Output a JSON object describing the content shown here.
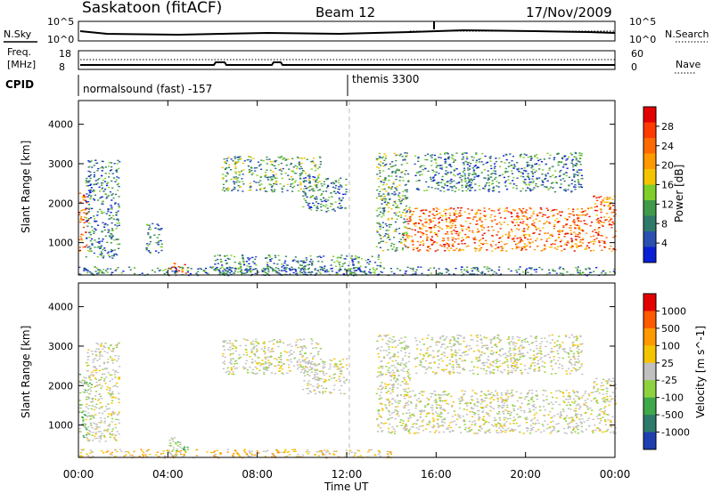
{
  "header": {
    "station": "Saskatoon (fitACF)",
    "beam": "Beam 12",
    "date": "17/Nov/2009"
  },
  "noise_panel": {
    "left_label": "N.Sky",
    "right_label": "N.Search",
    "left_ticks": [
      "10^5",
      "10^0"
    ],
    "right_ticks": [
      "10^5",
      "10^0"
    ]
  },
  "freq_panel": {
    "left_label_line1": "Freq.",
    "left_label_line2": "[MHz]",
    "right_label": "Nave",
    "left_ticks": [
      "18",
      "8"
    ],
    "right_ticks": [
      "60",
      "0"
    ]
  },
  "cpid_panel": {
    "label": "CPID",
    "programs": [
      {
        "name": "normalsound (fast) -157",
        "start_hour": 0
      },
      {
        "name": "themis 3300",
        "start_hour": 12
      }
    ]
  },
  "chart_data": [
    {
      "type": "heatmap",
      "name": "power",
      "xlabel": "Time UT",
      "ylabel": "Slant Range [km]",
      "colorbar_label": "Power [dB]",
      "x_range_hours": [
        0,
        24
      ],
      "ylim": [
        180,
        4600
      ],
      "x_ticks": [
        "00:00",
        "04:00",
        "08:00",
        "12:00",
        "16:00",
        "20:00",
        "00:00"
      ],
      "y_ticks": [
        1000,
        2000,
        3000,
        4000
      ],
      "colorbar_ticks": [
        "28",
        "24",
        "20",
        "16",
        "12",
        "8",
        "4"
      ],
      "colorbar_colors": [
        "#0a1fd6",
        "#2a50b0",
        "#2f7a6a",
        "#3f9b4a",
        "#7fcf2a",
        "#f5c400",
        "#ff9900",
        "#ff6a00",
        "#ff3a00",
        "#e50000"
      ],
      "regions": [
        {
          "t0": 0.0,
          "t1": 0.4,
          "r0": 700,
          "r1": 2300,
          "value": "high"
        },
        {
          "t0": 0.3,
          "t1": 1.8,
          "r0": 600,
          "r1": 3100,
          "value": "low"
        },
        {
          "t0": 3.0,
          "t1": 3.7,
          "r0": 700,
          "r1": 1500,
          "value": "low"
        },
        {
          "t0": 4.0,
          "t1": 4.9,
          "r0": 180,
          "r1": 500,
          "value": "high"
        },
        {
          "t0": 6.4,
          "t1": 10.8,
          "r0": 2300,
          "r1": 3200,
          "value": "mid"
        },
        {
          "t0": 10.0,
          "t1": 12.0,
          "r0": 1800,
          "r1": 2700,
          "value": "low"
        },
        {
          "t0": 6.0,
          "t1": 13.5,
          "r0": 180,
          "r1": 700,
          "value": "low"
        },
        {
          "t0": 13.3,
          "t1": 14.8,
          "r0": 800,
          "r1": 3300,
          "value": "mid"
        },
        {
          "t0": 14.5,
          "t1": 23.0,
          "r0": 800,
          "r1": 1900,
          "value": "high"
        },
        {
          "t0": 15.0,
          "t1": 22.5,
          "r0": 2300,
          "r1": 3300,
          "value": "low"
        },
        {
          "t0": 23.0,
          "t1": 24.0,
          "r0": 800,
          "r1": 2200,
          "value": "high"
        },
        {
          "t0": 0.0,
          "t1": 24.0,
          "r0": 180,
          "r1": 400,
          "value": "low"
        }
      ]
    },
    {
      "type": "heatmap",
      "name": "velocity",
      "xlabel": "Time UT",
      "ylabel": "Slant Range [km]",
      "colorbar_label": "Velocity [m s^-1]",
      "x_range_hours": [
        0,
        24
      ],
      "ylim": [
        180,
        4600
      ],
      "x_ticks": [
        "00:00",
        "04:00",
        "08:00",
        "12:00",
        "16:00",
        "20:00",
        "00:00"
      ],
      "y_ticks": [
        1000,
        2000,
        3000,
        4000
      ],
      "colorbar_ticks": [
        "1000",
        "500",
        "100",
        "25",
        "-25",
        "-100",
        "-500",
        "-1000"
      ],
      "colorbar_colors": [
        "#1f3fb0",
        "#2e7a6a",
        "#3fa84a",
        "#8fd240",
        "#c0c0c0",
        "#f5c400",
        "#ff9900",
        "#ff5a00",
        "#e50000"
      ],
      "regions": [
        {
          "t0": 0.0,
          "t1": 0.6,
          "r0": 700,
          "r1": 2300,
          "value": "green"
        },
        {
          "t0": 0.3,
          "t1": 1.8,
          "r0": 600,
          "r1": 3100,
          "value": "gray"
        },
        {
          "t0": 4.0,
          "t1": 4.9,
          "r0": 180,
          "r1": 700,
          "value": "green"
        },
        {
          "t0": 6.4,
          "t1": 10.8,
          "r0": 2300,
          "r1": 3200,
          "value": "gray"
        },
        {
          "t0": 10.0,
          "t1": 12.0,
          "r0": 1800,
          "r1": 2700,
          "value": "gray"
        },
        {
          "t0": 13.3,
          "t1": 14.8,
          "r0": 800,
          "r1": 3300,
          "value": "gray"
        },
        {
          "t0": 14.5,
          "t1": 23.0,
          "r0": 800,
          "r1": 1900,
          "value": "gray"
        },
        {
          "t0": 15.0,
          "t1": 22.5,
          "r0": 2300,
          "r1": 3300,
          "value": "gray"
        },
        {
          "t0": 23.0,
          "t1": 24.0,
          "r0": 800,
          "r1": 2200,
          "value": "gray"
        },
        {
          "t0": 0.0,
          "t1": 14.0,
          "r0": 180,
          "r1": 400,
          "value": "orange"
        }
      ]
    }
  ]
}
